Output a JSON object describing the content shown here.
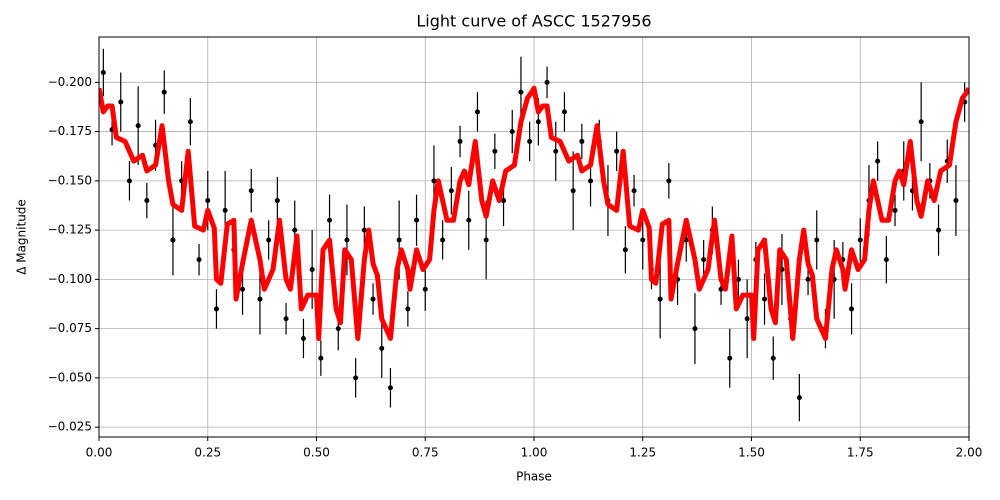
{
  "chart_data": {
    "type": "scatter",
    "title": "Light curve of ASCC 1527956",
    "xlabel": "Phase",
    "ylabel": "Δ Magnitude",
    "xlim": [
      0,
      2
    ],
    "ylim": [
      -0.02,
      -0.223
    ],
    "grid": true,
    "xticks": [
      {
        "value": 0,
        "label": "0.00"
      },
      {
        "value": 0.25,
        "label": "0.25"
      },
      {
        "value": 0.5,
        "label": "0.50"
      },
      {
        "value": 0.75,
        "label": "0.75"
      },
      {
        "value": 1,
        "label": "1.00"
      },
      {
        "value": 1.25,
        "label": "1.25"
      },
      {
        "value": 1.5,
        "label": "1.50"
      },
      {
        "value": 1.75,
        "label": "1.75"
      },
      {
        "value": 2,
        "label": "2.00"
      }
    ],
    "yticks": [
      {
        "value": -0.2,
        "label": "−0.200"
      },
      {
        "value": -0.175,
        "label": "−0.175"
      },
      {
        "value": -0.15,
        "label": "−0.150"
      },
      {
        "value": -0.125,
        "label": "−0.125"
      },
      {
        "value": -0.1,
        "label": "−0.100"
      },
      {
        "value": -0.075,
        "label": "−0.075"
      },
      {
        "value": -0.05,
        "label": "−0.050"
      },
      {
        "value": -0.025,
        "label": "−0.025"
      }
    ],
    "series": [
      {
        "type": "errorbar",
        "color": "#000000",
        "x": [
          0.01,
          0.03,
          0.05,
          0.07,
          0.09,
          0.11,
          0.13,
          0.15,
          0.17,
          0.19,
          0.21,
          0.23,
          0.25,
          0.27,
          0.29,
          0.31,
          0.33,
          0.35,
          0.37,
          0.39,
          0.41,
          0.43,
          0.45,
          0.47,
          0.49,
          0.51,
          0.53,
          0.55,
          0.57,
          0.59,
          0.61,
          0.63,
          0.65,
          0.67,
          0.69,
          0.71,
          0.73,
          0.75,
          0.77,
          0.79,
          0.81,
          0.83,
          0.85,
          0.87,
          0.89,
          0.91,
          0.93,
          0.95,
          0.97,
          0.99,
          1.01,
          1.03,
          1.05,
          1.07,
          1.09,
          1.11,
          1.13,
          1.15,
          1.17,
          1.19,
          1.21,
          1.23,
          1.25,
          1.27,
          1.29,
          1.31,
          1.33,
          1.35,
          1.37,
          1.39,
          1.41,
          1.43,
          1.45,
          1.47,
          1.49,
          1.51,
          1.53,
          1.55,
          1.57,
          1.59,
          1.61,
          1.63,
          1.65,
          1.67,
          1.69,
          1.71,
          1.73,
          1.75,
          1.77,
          1.79,
          1.81,
          1.83,
          1.85,
          1.87,
          1.89,
          1.91,
          1.93,
          1.95,
          1.97,
          1.99
        ],
        "values": [
          -0.205,
          -0.176,
          -0.19,
          -0.15,
          -0.178,
          -0.14,
          -0.168,
          -0.195,
          -0.12,
          -0.15,
          -0.18,
          -0.11,
          -0.14,
          -0.085,
          -0.135,
          -0.115,
          -0.095,
          -0.145,
          -0.09,
          -0.12,
          -0.14,
          -0.08,
          -0.125,
          -0.07,
          -0.105,
          -0.06,
          -0.13,
          -0.075,
          -0.12,
          -0.05,
          -0.125,
          -0.09,
          -0.065,
          -0.045,
          -0.12,
          -0.085,
          -0.13,
          -0.095,
          -0.15,
          -0.12,
          -0.145,
          -0.17,
          -0.13,
          -0.185,
          -0.12,
          -0.165,
          -0.14,
          -0.175,
          -0.195,
          -0.17,
          -0.18,
          -0.2,
          -0.165,
          -0.185,
          -0.145,
          -0.17,
          -0.15,
          -0.17,
          -0.14,
          -0.165,
          -0.115,
          -0.145,
          -0.12,
          -0.105,
          -0.09,
          -0.15,
          -0.1,
          -0.12,
          -0.075,
          -0.11,
          -0.125,
          -0.095,
          -0.06,
          -0.1,
          -0.08,
          -0.11,
          -0.09,
          -0.06,
          -0.105,
          -0.08,
          -0.04,
          -0.1,
          -0.12,
          -0.075,
          -0.1,
          -0.11,
          -0.085,
          -0.12,
          -0.14,
          -0.16,
          -0.11,
          -0.135,
          -0.155,
          -0.145,
          -0.18,
          -0.15,
          -0.125,
          -0.16,
          -0.14,
          -0.19
        ],
        "errors": [
          0.012,
          0.008,
          0.015,
          0.01,
          0.02,
          0.009,
          0.013,
          0.011,
          0.018,
          0.01,
          0.012,
          0.008,
          0.015,
          0.01,
          0.02,
          0.009,
          0.013,
          0.011,
          0.018,
          0.01,
          0.012,
          0.008,
          0.015,
          0.01,
          0.02,
          0.009,
          0.013,
          0.011,
          0.018,
          0.01,
          0.012,
          0.008,
          0.015,
          0.01,
          0.02,
          0.009,
          0.013,
          0.011,
          0.018,
          0.01,
          0.012,
          0.008,
          0.015,
          0.01,
          0.02,
          0.009,
          0.013,
          0.011,
          0.018,
          0.01,
          0.012,
          0.008,
          0.015,
          0.01,
          0.02,
          0.009,
          0.013,
          0.011,
          0.018,
          0.01,
          0.012,
          0.008,
          0.015,
          0.01,
          0.02,
          0.009,
          0.013,
          0.011,
          0.018,
          0.01,
          0.012,
          0.008,
          0.015,
          0.01,
          0.02,
          0.009,
          0.013,
          0.011,
          0.018,
          0.01,
          0.012,
          0.008,
          0.015,
          0.01,
          0.02,
          0.009,
          0.013,
          0.011,
          0.018,
          0.01,
          0.012,
          0.008,
          0.015,
          0.01,
          0.02,
          0.009,
          0.013,
          0.011,
          0.018,
          0.01
        ]
      },
      {
        "type": "line",
        "color": "#ff0000",
        "x": [
          0,
          0.01,
          0.02,
          0.03,
          0.04,
          0.06,
          0.08,
          0.1,
          0.11,
          0.13,
          0.145,
          0.16,
          0.17,
          0.19,
          0.205,
          0.22,
          0.24,
          0.25,
          0.265,
          0.27,
          0.28,
          0.295,
          0.31,
          0.315,
          0.33,
          0.35,
          0.37,
          0.38,
          0.4,
          0.415,
          0.43,
          0.44,
          0.455,
          0.465,
          0.48,
          0.5,
          0.505,
          0.515,
          0.53,
          0.545,
          0.555,
          0.565,
          0.58,
          0.595,
          0.61,
          0.62,
          0.63,
          0.64,
          0.65,
          0.67,
          0.685,
          0.695,
          0.71,
          0.715,
          0.73,
          0.745,
          0.76,
          0.77,
          0.78,
          0.8,
          0.815,
          0.83,
          0.84,
          0.85,
          0.865,
          0.88,
          0.89,
          0.905,
          0.92,
          0.935,
          0.955,
          0.97,
          0.985,
          0.995,
          1,
          1.01,
          1.02,
          1.03,
          1.04,
          1.06,
          1.08,
          1.1,
          1.11,
          1.13,
          1.145,
          1.16,
          1.17,
          1.19,
          1.205,
          1.22,
          1.24,
          1.25,
          1.265,
          1.27,
          1.28,
          1.295,
          1.31,
          1.315,
          1.33,
          1.35,
          1.37,
          1.38,
          1.4,
          1.415,
          1.43,
          1.44,
          1.455,
          1.465,
          1.48,
          1.5,
          1.505,
          1.515,
          1.53,
          1.545,
          1.555,
          1.565,
          1.58,
          1.595,
          1.61,
          1.62,
          1.63,
          1.64,
          1.65,
          1.67,
          1.685,
          1.695,
          1.71,
          1.715,
          1.73,
          1.745,
          1.76,
          1.77,
          1.78,
          1.8,
          1.815,
          1.83,
          1.84,
          1.85,
          1.865,
          1.88,
          1.89,
          1.905,
          1.92,
          1.935,
          1.955,
          1.97,
          1.985,
          1.995,
          2
        ],
        "values": [
          -0.197,
          -0.185,
          -0.188,
          -0.188,
          -0.172,
          -0.17,
          -0.16,
          -0.163,
          -0.155,
          -0.158,
          -0.178,
          -0.15,
          -0.138,
          -0.135,
          -0.165,
          -0.127,
          -0.125,
          -0.135,
          -0.126,
          -0.1,
          -0.098,
          -0.128,
          -0.13,
          -0.09,
          -0.108,
          -0.13,
          -0.11,
          -0.095,
          -0.105,
          -0.13,
          -0.1,
          -0.095,
          -0.122,
          -0.085,
          -0.092,
          -0.092,
          -0.07,
          -0.115,
          -0.12,
          -0.085,
          -0.078,
          -0.115,
          -0.11,
          -0.07,
          -0.11,
          -0.125,
          -0.108,
          -0.102,
          -0.08,
          -0.07,
          -0.105,
          -0.115,
          -0.105,
          -0.095,
          -0.115,
          -0.105,
          -0.11,
          -0.135,
          -0.15,
          -0.13,
          -0.13,
          -0.15,
          -0.155,
          -0.148,
          -0.17,
          -0.14,
          -0.132,
          -0.15,
          -0.14,
          -0.155,
          -0.158,
          -0.18,
          -0.192,
          -0.195,
          -0.197,
          -0.185,
          -0.188,
          -0.188,
          -0.172,
          -0.17,
          -0.16,
          -0.163,
          -0.155,
          -0.158,
          -0.178,
          -0.15,
          -0.138,
          -0.135,
          -0.165,
          -0.127,
          -0.125,
          -0.135,
          -0.126,
          -0.1,
          -0.098,
          -0.128,
          -0.13,
          -0.09,
          -0.108,
          -0.13,
          -0.11,
          -0.095,
          -0.105,
          -0.13,
          -0.1,
          -0.095,
          -0.122,
          -0.085,
          -0.092,
          -0.092,
          -0.07,
          -0.115,
          -0.12,
          -0.085,
          -0.078,
          -0.115,
          -0.11,
          -0.07,
          -0.11,
          -0.125,
          -0.108,
          -0.102,
          -0.08,
          -0.07,
          -0.105,
          -0.115,
          -0.105,
          -0.095,
          -0.115,
          -0.105,
          -0.11,
          -0.135,
          -0.15,
          -0.13,
          -0.13,
          -0.15,
          -0.155,
          -0.148,
          -0.17,
          -0.14,
          -0.132,
          -0.15,
          -0.14,
          -0.155,
          -0.158,
          -0.18,
          -0.192,
          -0.195,
          -0.197
        ]
      }
    ]
  }
}
